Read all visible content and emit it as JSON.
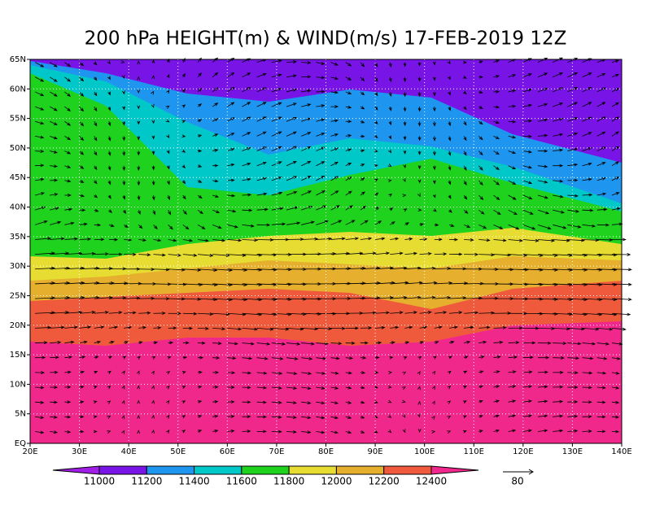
{
  "title": "200 hPa HEIGHT(m) & WIND(m/s) 17-FEB-2019 12Z",
  "map": {
    "lonlim": [
      20,
      140
    ],
    "latlim": [
      0,
      65
    ],
    "lon_ticks": [
      {
        "value": 20,
        "label": "20E"
      },
      {
        "value": 30,
        "label": "30E"
      },
      {
        "value": 40,
        "label": "40E"
      },
      {
        "value": 50,
        "label": "50E"
      },
      {
        "value": 60,
        "label": "60E"
      },
      {
        "value": 70,
        "label": "70E"
      },
      {
        "value": 80,
        "label": "80E"
      },
      {
        "value": 90,
        "label": "90E"
      },
      {
        "value": 100,
        "label": "100E"
      },
      {
        "value": 110,
        "label": "110E"
      },
      {
        "value": 120,
        "label": "120E"
      },
      {
        "value": 130,
        "label": "130E"
      },
      {
        "value": 140,
        "label": "140E"
      }
    ],
    "lat_ticks": [
      {
        "value": 0,
        "label": "EQ"
      },
      {
        "value": 5,
        "label": "5N"
      },
      {
        "value": 10,
        "label": "10N"
      },
      {
        "value": 15,
        "label": "15N"
      },
      {
        "value": 20,
        "label": "20N"
      },
      {
        "value": 25,
        "label": "25N"
      },
      {
        "value": 30,
        "label": "30N"
      },
      {
        "value": 35,
        "label": "35N"
      },
      {
        "value": 40,
        "label": "40N"
      },
      {
        "value": 45,
        "label": "45N"
      },
      {
        "value": 50,
        "label": "50N"
      },
      {
        "value": 55,
        "label": "55N"
      },
      {
        "value": 60,
        "label": "60N"
      },
      {
        "value": 65,
        "label": "65N"
      }
    ]
  },
  "colorbar": {
    "levels": [
      11000,
      11200,
      11400,
      11600,
      11800,
      12000,
      12200,
      12400
    ],
    "colors": [
      "#a01ee6",
      "#7814e6",
      "#1e96f0",
      "#00c8c8",
      "#1ed21e",
      "#e6dc32",
      "#e6af2d",
      "#f05a3c",
      "#f0288c"
    ]
  },
  "reference_vector": 80
}
